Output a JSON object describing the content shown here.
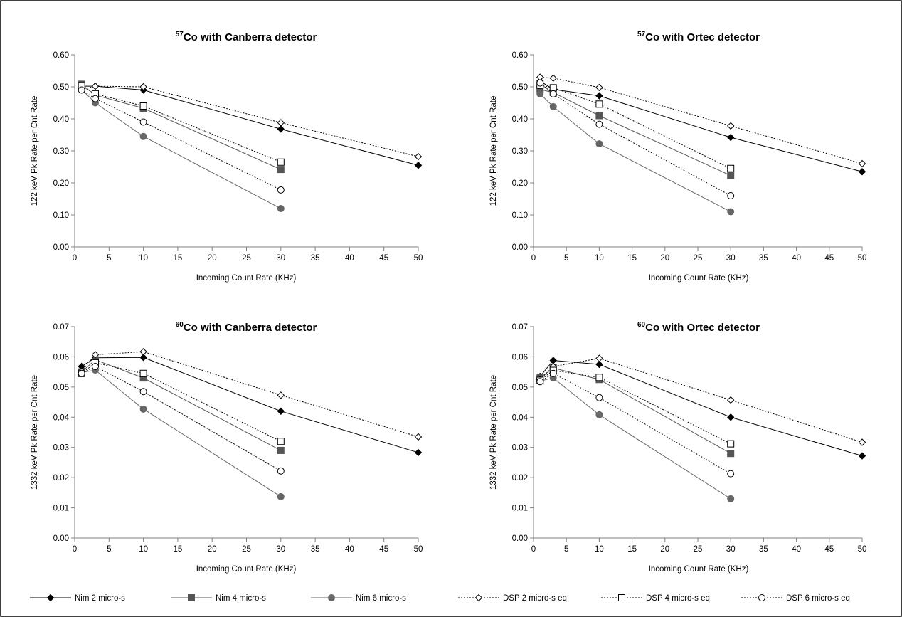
{
  "series_styles": [
    {
      "color": "#000000",
      "marker": "diamond",
      "fill": "#000000",
      "dash": ""
    },
    {
      "color": "#555555",
      "marker": "square",
      "fill": "#555555",
      "dash": ""
    },
    {
      "color": "#666666",
      "marker": "circle",
      "fill": "#666666",
      "dash": ""
    },
    {
      "color": "#000000",
      "marker": "diamond",
      "fill": "#ffffff",
      "dash": "2,2"
    },
    {
      "color": "#000000",
      "marker": "square",
      "fill": "#ffffff",
      "dash": "2,2"
    },
    {
      "color": "#000000",
      "marker": "circle",
      "fill": "#ffffff",
      "dash": "2,2"
    }
  ],
  "legend": {
    "items": [
      "Nim 2 micro-s",
      "Nim 4 micro-s",
      "Nim 6 micro-s",
      "DSP 2 micro-s eq",
      "DSP 4 micro-s eq",
      "DSP 6 micro-s eq"
    ]
  },
  "chart_data": [
    {
      "type": "line",
      "title": {
        "sup": "57",
        "text": "Co with Canberra detector"
      },
      "xlabel": "Incoming Count Rate (KHz)",
      "ylabel": "122 keV Pk Rate per Cnt Rate",
      "xlim": [
        0,
        50
      ],
      "ylim": [
        0,
        0.6
      ],
      "xticks": [
        "0",
        "5",
        "10",
        "15",
        "20",
        "25",
        "30",
        "35",
        "40",
        "45",
        "50"
      ],
      "yticks": [
        "0.00",
        "0.10",
        "0.20",
        "0.30",
        "0.40",
        "0.50",
        "0.60"
      ],
      "grid": false,
      "series": [
        {
          "name": "Nim 2 micro-s",
          "x": [
            1,
            3,
            10,
            30,
            50
          ],
          "y": [
            0.502,
            0.502,
            0.49,
            0.368,
            0.255
          ]
        },
        {
          "name": "Nim 4 micro-s",
          "x": [
            1,
            3,
            10,
            30
          ],
          "y": [
            0.508,
            0.474,
            0.433,
            0.242
          ]
        },
        {
          "name": "Nim 6 micro-s",
          "x": [
            1,
            3,
            10,
            30
          ],
          "y": [
            0.492,
            0.45,
            0.345,
            0.12
          ]
        },
        {
          "name": "DSP 2 micro-s eq",
          "x": [
            1,
            3,
            10,
            30,
            50
          ],
          "y": [
            0.492,
            0.502,
            0.5,
            0.388,
            0.282
          ]
        },
        {
          "name": "DSP 4 micro-s eq",
          "x": [
            1,
            3,
            10,
            30
          ],
          "y": [
            0.503,
            0.478,
            0.44,
            0.265
          ]
        },
        {
          "name": "DSP 6 micro-s eq",
          "x": [
            1,
            3,
            10,
            30
          ],
          "y": [
            0.49,
            0.463,
            0.39,
            0.178
          ]
        }
      ]
    },
    {
      "type": "line",
      "title": {
        "sup": "57",
        "text": "Co with Ortec detector"
      },
      "xlabel": "Incoming Count Rate (KHz)",
      "ylabel": "122 keV Pk Rate per Cnt Rate",
      "xlim": [
        0,
        50
      ],
      "ylim": [
        0,
        0.6
      ],
      "xticks": [
        "0",
        "5",
        "10",
        "15",
        "20",
        "25",
        "30",
        "35",
        "40",
        "45",
        "50"
      ],
      "yticks": [
        "0.00",
        "0.10",
        "0.20",
        "0.30",
        "0.40",
        "0.50",
        "0.60"
      ],
      "grid": false,
      "series": [
        {
          "name": "Nim 2 micro-s",
          "x": [
            1,
            3,
            10,
            30,
            50
          ],
          "y": [
            0.518,
            0.492,
            0.472,
            0.342,
            0.235
          ]
        },
        {
          "name": "Nim 4 micro-s",
          "x": [
            1,
            3,
            10,
            30
          ],
          "y": [
            0.492,
            0.482,
            0.41,
            0.223
          ]
        },
        {
          "name": "Nim 6 micro-s",
          "x": [
            1,
            3,
            10,
            30
          ],
          "y": [
            0.478,
            0.438,
            0.322,
            0.11
          ]
        },
        {
          "name": "DSP 2 micro-s eq",
          "x": [
            1,
            3,
            10,
            30,
            50
          ],
          "y": [
            0.53,
            0.527,
            0.498,
            0.378,
            0.26
          ]
        },
        {
          "name": "DSP 4 micro-s eq",
          "x": [
            1,
            3,
            10,
            30
          ],
          "y": [
            0.505,
            0.497,
            0.446,
            0.245
          ]
        },
        {
          "name": "DSP 6 micro-s eq",
          "x": [
            1,
            3,
            10,
            30
          ],
          "y": [
            0.512,
            0.478,
            0.383,
            0.16
          ]
        }
      ]
    },
    {
      "type": "line",
      "title": {
        "sup": "60",
        "text": "Co with Canberra detector"
      },
      "xlabel": "Incoming Count Rate (KHz)",
      "ylabel": "1332 keV Pk Rate per Cnt Rate",
      "xlim": [
        0,
        50
      ],
      "ylim": [
        0,
        0.07
      ],
      "xticks": [
        "0",
        "5",
        "10",
        "15",
        "20",
        "25",
        "30",
        "35",
        "40",
        "45",
        "50"
      ],
      "yticks": [
        "0.00",
        "0.01",
        "0.02",
        "0.03",
        "0.04",
        "0.05",
        "0.06",
        "0.07"
      ],
      "grid": false,
      "series": [
        {
          "name": "Nim 2 micro-s",
          "x": [
            1,
            3,
            10,
            30,
            50
          ],
          "y": [
            0.0568,
            0.0597,
            0.0598,
            0.042,
            0.0283
          ]
        },
        {
          "name": "Nim 4 micro-s",
          "x": [
            1,
            3,
            10,
            30
          ],
          "y": [
            0.055,
            0.059,
            0.053,
            0.029
          ]
        },
        {
          "name": "Nim 6 micro-s",
          "x": [
            1,
            3,
            10,
            30
          ],
          "y": [
            0.0548,
            0.0556,
            0.0427,
            0.0137
          ]
        },
        {
          "name": "DSP 2 micro-s eq",
          "x": [
            1,
            3,
            10,
            30,
            50
          ],
          "y": [
            0.0552,
            0.0607,
            0.0617,
            0.0473,
            0.0335
          ]
        },
        {
          "name": "DSP 4 micro-s eq",
          "x": [
            1,
            3,
            10,
            30
          ],
          "y": [
            0.0545,
            0.058,
            0.0545,
            0.032
          ]
        },
        {
          "name": "DSP 6 micro-s eq",
          "x": [
            1,
            3,
            10,
            30
          ],
          "y": [
            0.0545,
            0.0568,
            0.0485,
            0.0222
          ]
        }
      ]
    },
    {
      "type": "line",
      "title": {
        "sup": "60",
        "text": "Co with Ortec detector"
      },
      "xlabel": "Incoming Count Rate (KHz)",
      "ylabel": "1332 keV Pk Rate per Cnt Rate",
      "xlim": [
        0,
        50
      ],
      "ylim": [
        0,
        0.07
      ],
      "xticks": [
        "0",
        "5",
        "10",
        "15",
        "20",
        "25",
        "30",
        "35",
        "40",
        "45",
        "50"
      ],
      "yticks": [
        "0.00",
        "0.01",
        "0.02",
        "0.03",
        "0.04",
        "0.05",
        "0.06",
        "0.07"
      ],
      "grid": false,
      "series": [
        {
          "name": "Nim 2 micro-s",
          "x": [
            1,
            3,
            10,
            30,
            50
          ],
          "y": [
            0.0535,
            0.0588,
            0.0575,
            0.04,
            0.0272
          ]
        },
        {
          "name": "Nim 4 micro-s",
          "x": [
            1,
            3,
            10,
            30
          ],
          "y": [
            0.053,
            0.0563,
            0.0525,
            0.028
          ]
        },
        {
          "name": "Nim 6 micro-s",
          "x": [
            1,
            3,
            10,
            30
          ],
          "y": [
            0.052,
            0.053,
            0.0408,
            0.013
          ]
        },
        {
          "name": "DSP 2 micro-s eq",
          "x": [
            1,
            3,
            10,
            30,
            50
          ],
          "y": [
            0.0525,
            0.0568,
            0.0595,
            0.0457,
            0.0317
          ]
        },
        {
          "name": "DSP 4 micro-s eq",
          "x": [
            1,
            3,
            10,
            30
          ],
          "y": [
            0.0522,
            0.0555,
            0.0532,
            0.0312
          ]
        },
        {
          "name": "DSP 6 micro-s eq",
          "x": [
            1,
            3,
            10,
            30
          ],
          "y": [
            0.0518,
            0.0545,
            0.0465,
            0.0213
          ]
        }
      ]
    }
  ]
}
